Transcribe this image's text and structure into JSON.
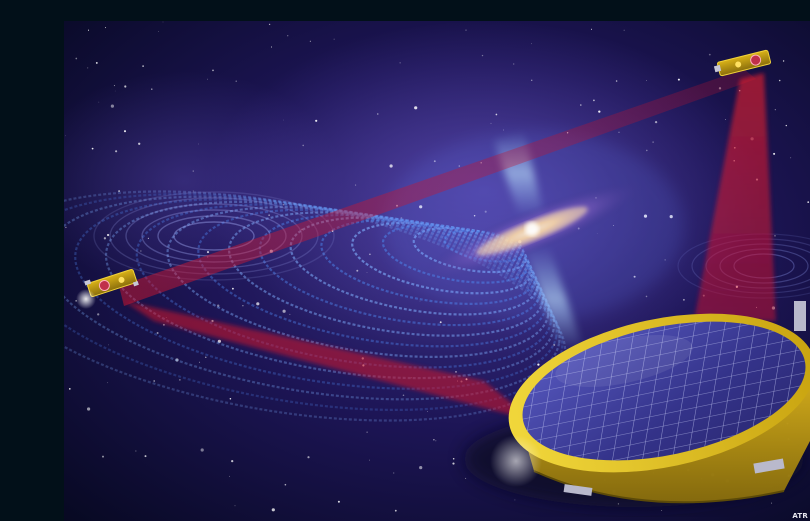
{
  "credit": "ATR",
  "colors": {
    "page_background": "#021019",
    "space_deep": "#07092a",
    "space_violet": "#2a1e66",
    "laser_red": "#d2142a",
    "wave_blue": "#4a7be0",
    "solar_panel": "#3b3a8c",
    "panel_rim": "#e7c51a"
  },
  "scene": {
    "subject": "spacecraft-constellation-artwork",
    "elements": [
      "galaxy-core-icon",
      "gravitational-wave-rings-icon",
      "laser-beam-icon",
      "spacecraft-icon",
      "solar-array-disc-icon"
    ]
  }
}
